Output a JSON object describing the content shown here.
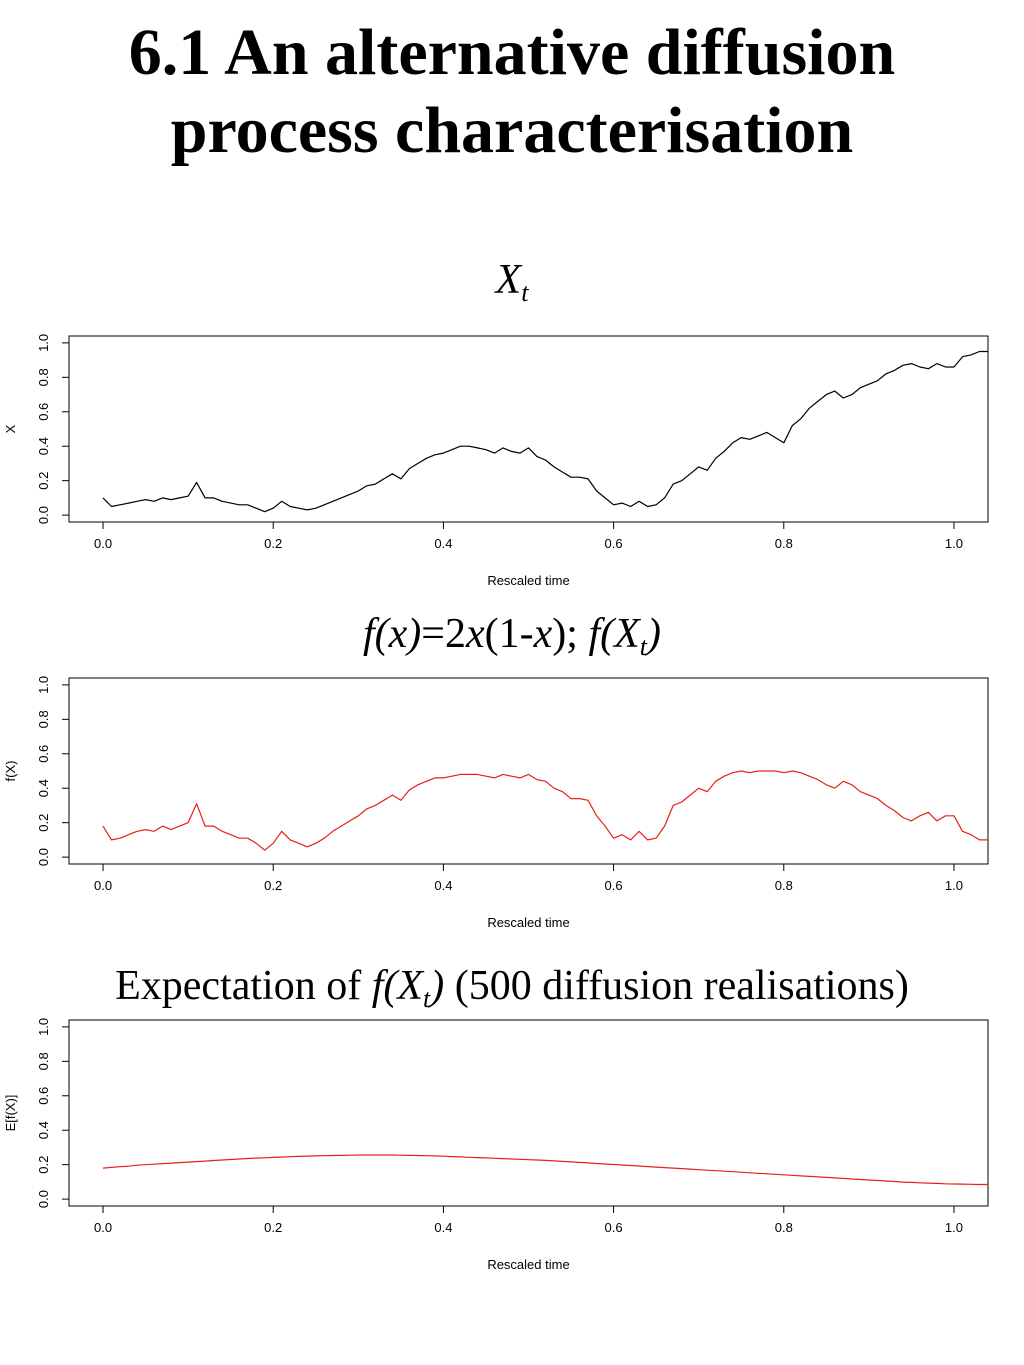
{
  "slide": {
    "title_line1": "6.1 An alternative diffusion",
    "title_line2": "process characterisation"
  },
  "panel1": {
    "title_var": "X",
    "title_sub": "t"
  },
  "panel2": {
    "title_fx": "f(x)",
    "title_eq": "=2",
    "title_x": "x",
    "title_paren1": "(1-",
    "title_x2": "x",
    "title_paren2": ");",
    "title_f": "f(X",
    "title_sub": "t",
    "title_close": ")"
  },
  "panel3": {
    "title_pre": "Expectation of ",
    "title_f": "f(X",
    "title_sub": "t",
    "title_close": ")",
    "title_post": " (500 diffusion realisations)"
  },
  "colors": {
    "black": "#000000",
    "red": "#e8201a"
  },
  "chart_data": [
    {
      "type": "line",
      "title": "X_t",
      "xlabel": "Rescaled time",
      "ylabel": "X",
      "xlim": [
        -0.04,
        1.04
      ],
      "ylim": [
        -0.04,
        1.04
      ],
      "xticks": [
        "0.0",
        "0.2",
        "0.4",
        "0.6",
        "0.8",
        "1.0"
      ],
      "yticks": [
        "0.0",
        "0.2",
        "0.4",
        "0.6",
        "0.8",
        "1.0"
      ],
      "series": [
        {
          "name": "X",
          "color": "#000000",
          "x": [
            0.0,
            0.01,
            0.02,
            0.03,
            0.04,
            0.05,
            0.06,
            0.07,
            0.08,
            0.09,
            0.1,
            0.11,
            0.12,
            0.13,
            0.14,
            0.15,
            0.16,
            0.17,
            0.18,
            0.19,
            0.2,
            0.21,
            0.22,
            0.23,
            0.24,
            0.25,
            0.26,
            0.27,
            0.28,
            0.29,
            0.3,
            0.31,
            0.32,
            0.33,
            0.34,
            0.35,
            0.36,
            0.37,
            0.38,
            0.39,
            0.4,
            0.41,
            0.42,
            0.43,
            0.44,
            0.45,
            0.46,
            0.47,
            0.48,
            0.49,
            0.5,
            0.51,
            0.52,
            0.53,
            0.54,
            0.55,
            0.56,
            0.57,
            0.58,
            0.59,
            0.6,
            0.61,
            0.62,
            0.63,
            0.64,
            0.65,
            0.66,
            0.67,
            0.68,
            0.69,
            0.7,
            0.71,
            0.72,
            0.73,
            0.74,
            0.75,
            0.76,
            0.77,
            0.78,
            0.79,
            0.8,
            0.81,
            0.82,
            0.83,
            0.84,
            0.85,
            0.86,
            0.87,
            0.88,
            0.89,
            0.9,
            0.91,
            0.92,
            0.93,
            0.94,
            0.95,
            0.96,
            0.97,
            0.98,
            0.99,
            1.0,
            1.01,
            1.02,
            1.03,
            1.04
          ],
          "y": [
            0.1,
            0.05,
            0.06,
            0.07,
            0.08,
            0.09,
            0.08,
            0.1,
            0.09,
            0.1,
            0.11,
            0.19,
            0.1,
            0.1,
            0.08,
            0.07,
            0.06,
            0.06,
            0.04,
            0.02,
            0.04,
            0.08,
            0.05,
            0.04,
            0.03,
            0.04,
            0.06,
            0.08,
            0.1,
            0.12,
            0.14,
            0.17,
            0.18,
            0.21,
            0.24,
            0.21,
            0.27,
            0.3,
            0.33,
            0.35,
            0.36,
            0.38,
            0.4,
            0.4,
            0.39,
            0.38,
            0.36,
            0.39,
            0.37,
            0.36,
            0.39,
            0.34,
            0.32,
            0.28,
            0.25,
            0.22,
            0.22,
            0.21,
            0.14,
            0.1,
            0.06,
            0.07,
            0.05,
            0.08,
            0.05,
            0.06,
            0.1,
            0.18,
            0.2,
            0.24,
            0.28,
            0.26,
            0.33,
            0.37,
            0.42,
            0.45,
            0.44,
            0.46,
            0.48,
            0.45,
            0.42,
            0.52,
            0.56,
            0.62,
            0.66,
            0.7,
            0.72,
            0.68,
            0.7,
            0.74,
            0.76,
            0.78,
            0.82,
            0.84,
            0.87,
            0.88,
            0.86,
            0.85,
            0.88,
            0.86,
            0.86,
            0.92,
            0.93,
            0.95,
            0.95
          ]
        }
      ]
    },
    {
      "type": "line",
      "title": "f(x)=2x(1-x); f(X_t)",
      "xlabel": "Rescaled time",
      "ylabel": "f(X)",
      "xlim": [
        -0.04,
        1.04
      ],
      "ylim": [
        -0.04,
        1.04
      ],
      "xticks": [
        "0.0",
        "0.2",
        "0.4",
        "0.6",
        "0.8",
        "1.0"
      ],
      "yticks": [
        "0.0",
        "0.2",
        "0.4",
        "0.6",
        "0.8",
        "1.0"
      ],
      "series": [
        {
          "name": "f(X)",
          "color": "#e8201a",
          "x": [
            0.0,
            0.01,
            0.02,
            0.03,
            0.04,
            0.05,
            0.06,
            0.07,
            0.08,
            0.09,
            0.1,
            0.11,
            0.12,
            0.13,
            0.14,
            0.15,
            0.16,
            0.17,
            0.18,
            0.19,
            0.2,
            0.21,
            0.22,
            0.23,
            0.24,
            0.25,
            0.26,
            0.27,
            0.28,
            0.29,
            0.3,
            0.31,
            0.32,
            0.33,
            0.34,
            0.35,
            0.36,
            0.37,
            0.38,
            0.39,
            0.4,
            0.41,
            0.42,
            0.43,
            0.44,
            0.45,
            0.46,
            0.47,
            0.48,
            0.49,
            0.5,
            0.51,
            0.52,
            0.53,
            0.54,
            0.55,
            0.56,
            0.57,
            0.58,
            0.59,
            0.6,
            0.61,
            0.62,
            0.63,
            0.64,
            0.65,
            0.66,
            0.67,
            0.68,
            0.69,
            0.7,
            0.71,
            0.72,
            0.73,
            0.74,
            0.75,
            0.76,
            0.77,
            0.78,
            0.79,
            0.8,
            0.81,
            0.82,
            0.83,
            0.84,
            0.85,
            0.86,
            0.87,
            0.88,
            0.89,
            0.9,
            0.91,
            0.92,
            0.93,
            0.94,
            0.95,
            0.96,
            0.97,
            0.98,
            0.99,
            1.0,
            1.01,
            1.02,
            1.03,
            1.04
          ],
          "y": [
            0.18,
            0.1,
            0.11,
            0.13,
            0.15,
            0.16,
            0.15,
            0.18,
            0.16,
            0.18,
            0.2,
            0.31,
            0.18,
            0.18,
            0.15,
            0.13,
            0.11,
            0.11,
            0.08,
            0.04,
            0.08,
            0.15,
            0.1,
            0.08,
            0.06,
            0.08,
            0.11,
            0.15,
            0.18,
            0.21,
            0.24,
            0.28,
            0.3,
            0.33,
            0.36,
            0.33,
            0.39,
            0.42,
            0.44,
            0.46,
            0.46,
            0.47,
            0.48,
            0.48,
            0.48,
            0.47,
            0.46,
            0.48,
            0.47,
            0.46,
            0.48,
            0.45,
            0.44,
            0.4,
            0.38,
            0.34,
            0.34,
            0.33,
            0.24,
            0.18,
            0.11,
            0.13,
            0.1,
            0.15,
            0.1,
            0.11,
            0.18,
            0.3,
            0.32,
            0.36,
            0.4,
            0.38,
            0.44,
            0.47,
            0.49,
            0.5,
            0.49,
            0.5,
            0.5,
            0.5,
            0.49,
            0.5,
            0.49,
            0.47,
            0.45,
            0.42,
            0.4,
            0.44,
            0.42,
            0.38,
            0.36,
            0.34,
            0.3,
            0.27,
            0.23,
            0.21,
            0.24,
            0.26,
            0.21,
            0.24,
            0.24,
            0.15,
            0.13,
            0.1,
            0.1
          ]
        }
      ]
    },
    {
      "type": "line",
      "title": "Expectation of f(X_t) (500 diffusion realisations)",
      "xlabel": "Rescaled time",
      "ylabel": "E[f(X)]",
      "xlim": [
        -0.04,
        1.04
      ],
      "ylim": [
        -0.04,
        1.04
      ],
      "xticks": [
        "0.0",
        "0.2",
        "0.4",
        "0.6",
        "0.8",
        "1.0"
      ],
      "yticks": [
        "0.0",
        "0.2",
        "0.4",
        "0.6",
        "0.8",
        "1.0"
      ],
      "series": [
        {
          "name": "E[f(X)]",
          "color": "#e8201a",
          "x": [
            0.0,
            0.01,
            0.02,
            0.03,
            0.04,
            0.05,
            0.06,
            0.07,
            0.08,
            0.09,
            0.1,
            0.11,
            0.12,
            0.13,
            0.14,
            0.15,
            0.16,
            0.17,
            0.18,
            0.19,
            0.2,
            0.21,
            0.22,
            0.23,
            0.24,
            0.25,
            0.26,
            0.27,
            0.28,
            0.29,
            0.3,
            0.31,
            0.32,
            0.33,
            0.34,
            0.35,
            0.36,
            0.37,
            0.38,
            0.39,
            0.4,
            0.41,
            0.42,
            0.43,
            0.44,
            0.45,
            0.46,
            0.47,
            0.48,
            0.49,
            0.5,
            0.51,
            0.52,
            0.53,
            0.54,
            0.55,
            0.56,
            0.57,
            0.58,
            0.59,
            0.6,
            0.61,
            0.62,
            0.63,
            0.64,
            0.65,
            0.66,
            0.67,
            0.68,
            0.69,
            0.7,
            0.71,
            0.72,
            0.73,
            0.74,
            0.75,
            0.76,
            0.77,
            0.78,
            0.79,
            0.8,
            0.81,
            0.82,
            0.83,
            0.84,
            0.85,
            0.86,
            0.87,
            0.88,
            0.89,
            0.9,
            0.91,
            0.92,
            0.93,
            0.94,
            0.95,
            0.96,
            0.97,
            0.98,
            0.99,
            1.0,
            1.01,
            1.02,
            1.03,
            1.04
          ],
          "y": [
            0.18,
            0.184,
            0.188,
            0.191,
            0.197,
            0.2,
            0.203,
            0.206,
            0.209,
            0.212,
            0.215,
            0.218,
            0.221,
            0.224,
            0.227,
            0.23,
            0.233,
            0.236,
            0.238,
            0.24,
            0.242,
            0.244,
            0.246,
            0.248,
            0.25,
            0.251,
            0.252,
            0.253,
            0.254,
            0.255,
            0.256,
            0.256,
            0.256,
            0.256,
            0.256,
            0.255,
            0.254,
            0.253,
            0.252,
            0.251,
            0.249,
            0.247,
            0.245,
            0.243,
            0.241,
            0.239,
            0.237,
            0.235,
            0.233,
            0.231,
            0.229,
            0.227,
            0.225,
            0.222,
            0.219,
            0.216,
            0.213,
            0.21,
            0.207,
            0.204,
            0.201,
            0.198,
            0.195,
            0.192,
            0.189,
            0.186,
            0.183,
            0.18,
            0.177,
            0.174,
            0.171,
            0.168,
            0.165,
            0.162,
            0.159,
            0.156,
            0.153,
            0.15,
            0.147,
            0.144,
            0.141,
            0.138,
            0.135,
            0.132,
            0.129,
            0.126,
            0.123,
            0.12,
            0.117,
            0.114,
            0.111,
            0.108,
            0.105,
            0.102,
            0.099,
            0.097,
            0.095,
            0.093,
            0.091,
            0.089,
            0.088,
            0.087,
            0.086,
            0.085,
            0.085
          ]
        }
      ]
    }
  ]
}
